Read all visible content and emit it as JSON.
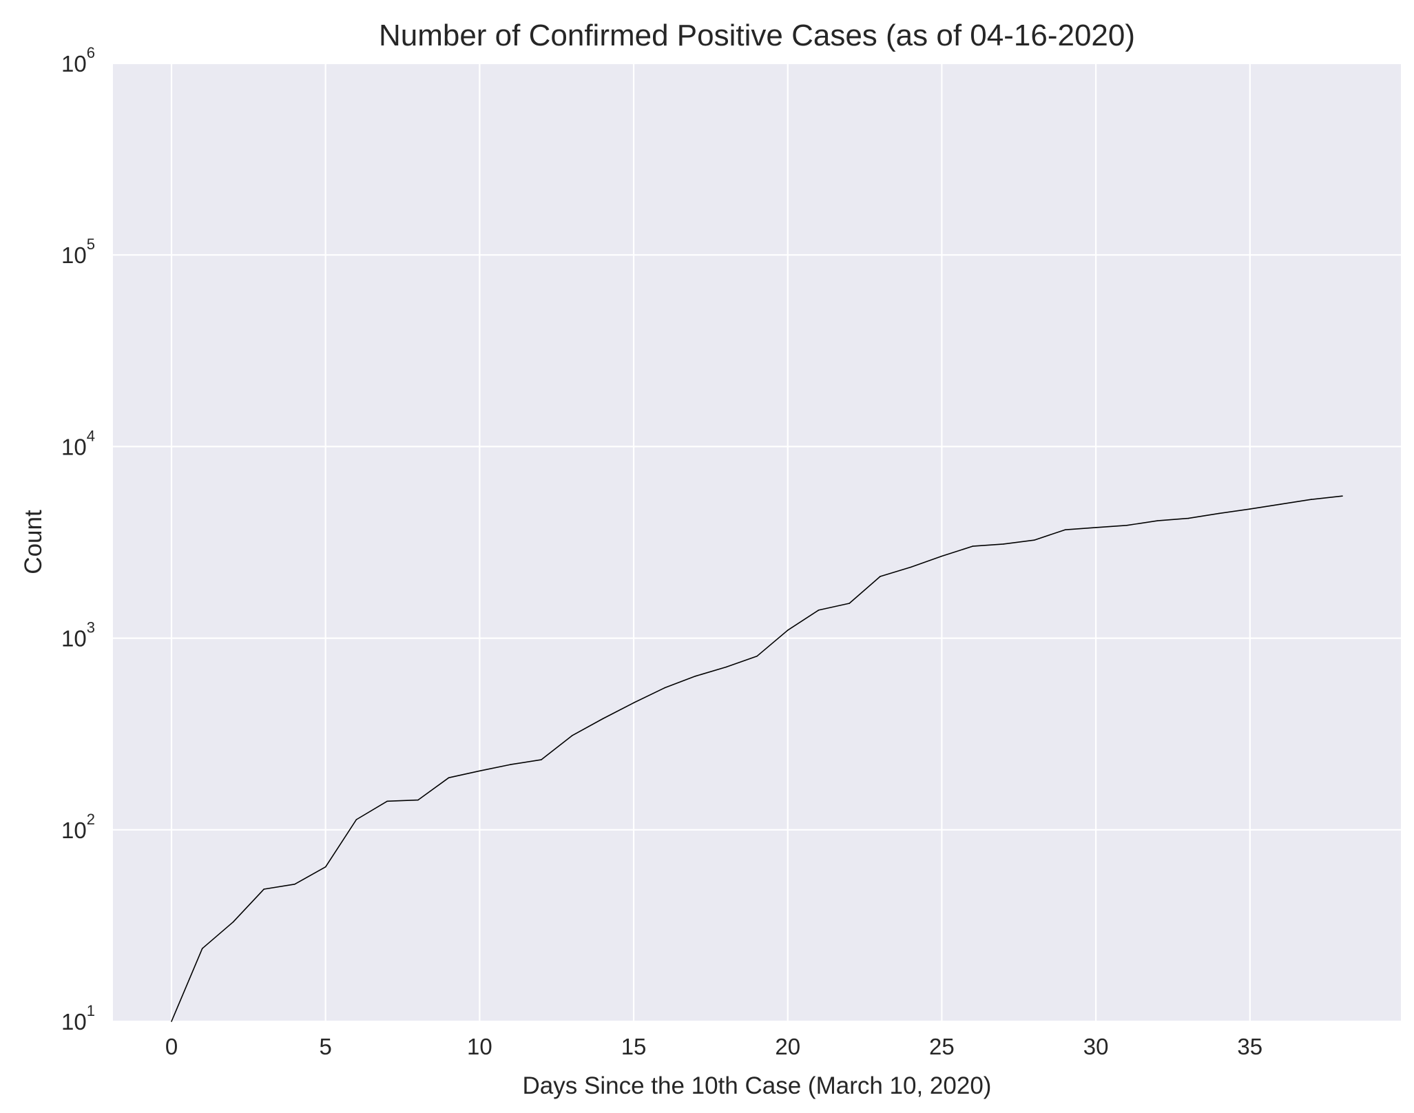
{
  "chart_data": {
    "type": "line",
    "title": "Number of Confirmed Positive Cases (as of 04-16-2020)",
    "xlabel": "Days Since the 10th Case (March 10, 2020)",
    "ylabel": "Count",
    "y_scale": "log",
    "xlim": [
      -1.9,
      39.9
    ],
    "ylim": [
      10,
      1000000
    ],
    "x_ticks": [
      0,
      5,
      10,
      15,
      20,
      25,
      30,
      35
    ],
    "y_ticks": [
      {
        "value": 10,
        "base": "10",
        "exp": "1"
      },
      {
        "value": 100,
        "base": "10",
        "exp": "2"
      },
      {
        "value": 1000,
        "base": "10",
        "exp": "3"
      },
      {
        "value": 10000,
        "base": "10",
        "exp": "4"
      },
      {
        "value": 100000,
        "base": "10",
        "exp": "5"
      },
      {
        "value": 1000000,
        "base": "10",
        "exp": "6"
      }
    ],
    "grid": true,
    "legend": "none",
    "colors": {
      "background": "#eaeaf2",
      "grid": "#ffffff",
      "line": "#000000"
    },
    "series": [
      {
        "x": [
          0,
          1,
          2,
          3,
          4,
          5,
          6,
          7,
          8,
          9,
          10,
          11,
          12,
          13,
          14,
          15,
          16,
          17,
          18,
          19,
          20,
          21,
          22,
          23,
          24,
          25,
          26,
          27,
          28,
          29,
          30,
          31,
          32,
          33,
          34,
          35,
          36,
          37,
          38
        ],
        "y": [
          10,
          24,
          33,
          49,
          52,
          64,
          113,
          141,
          143,
          187,
          203,
          219,
          232,
          310,
          380,
          460,
          550,
          633,
          707,
          805,
          1100,
          1400,
          1520,
          2100,
          2350,
          2680,
          3020,
          3100,
          3250,
          3680,
          3780,
          3880,
          4100,
          4220,
          4480,
          4720,
          5000,
          5300,
          5520
        ]
      }
    ]
  }
}
